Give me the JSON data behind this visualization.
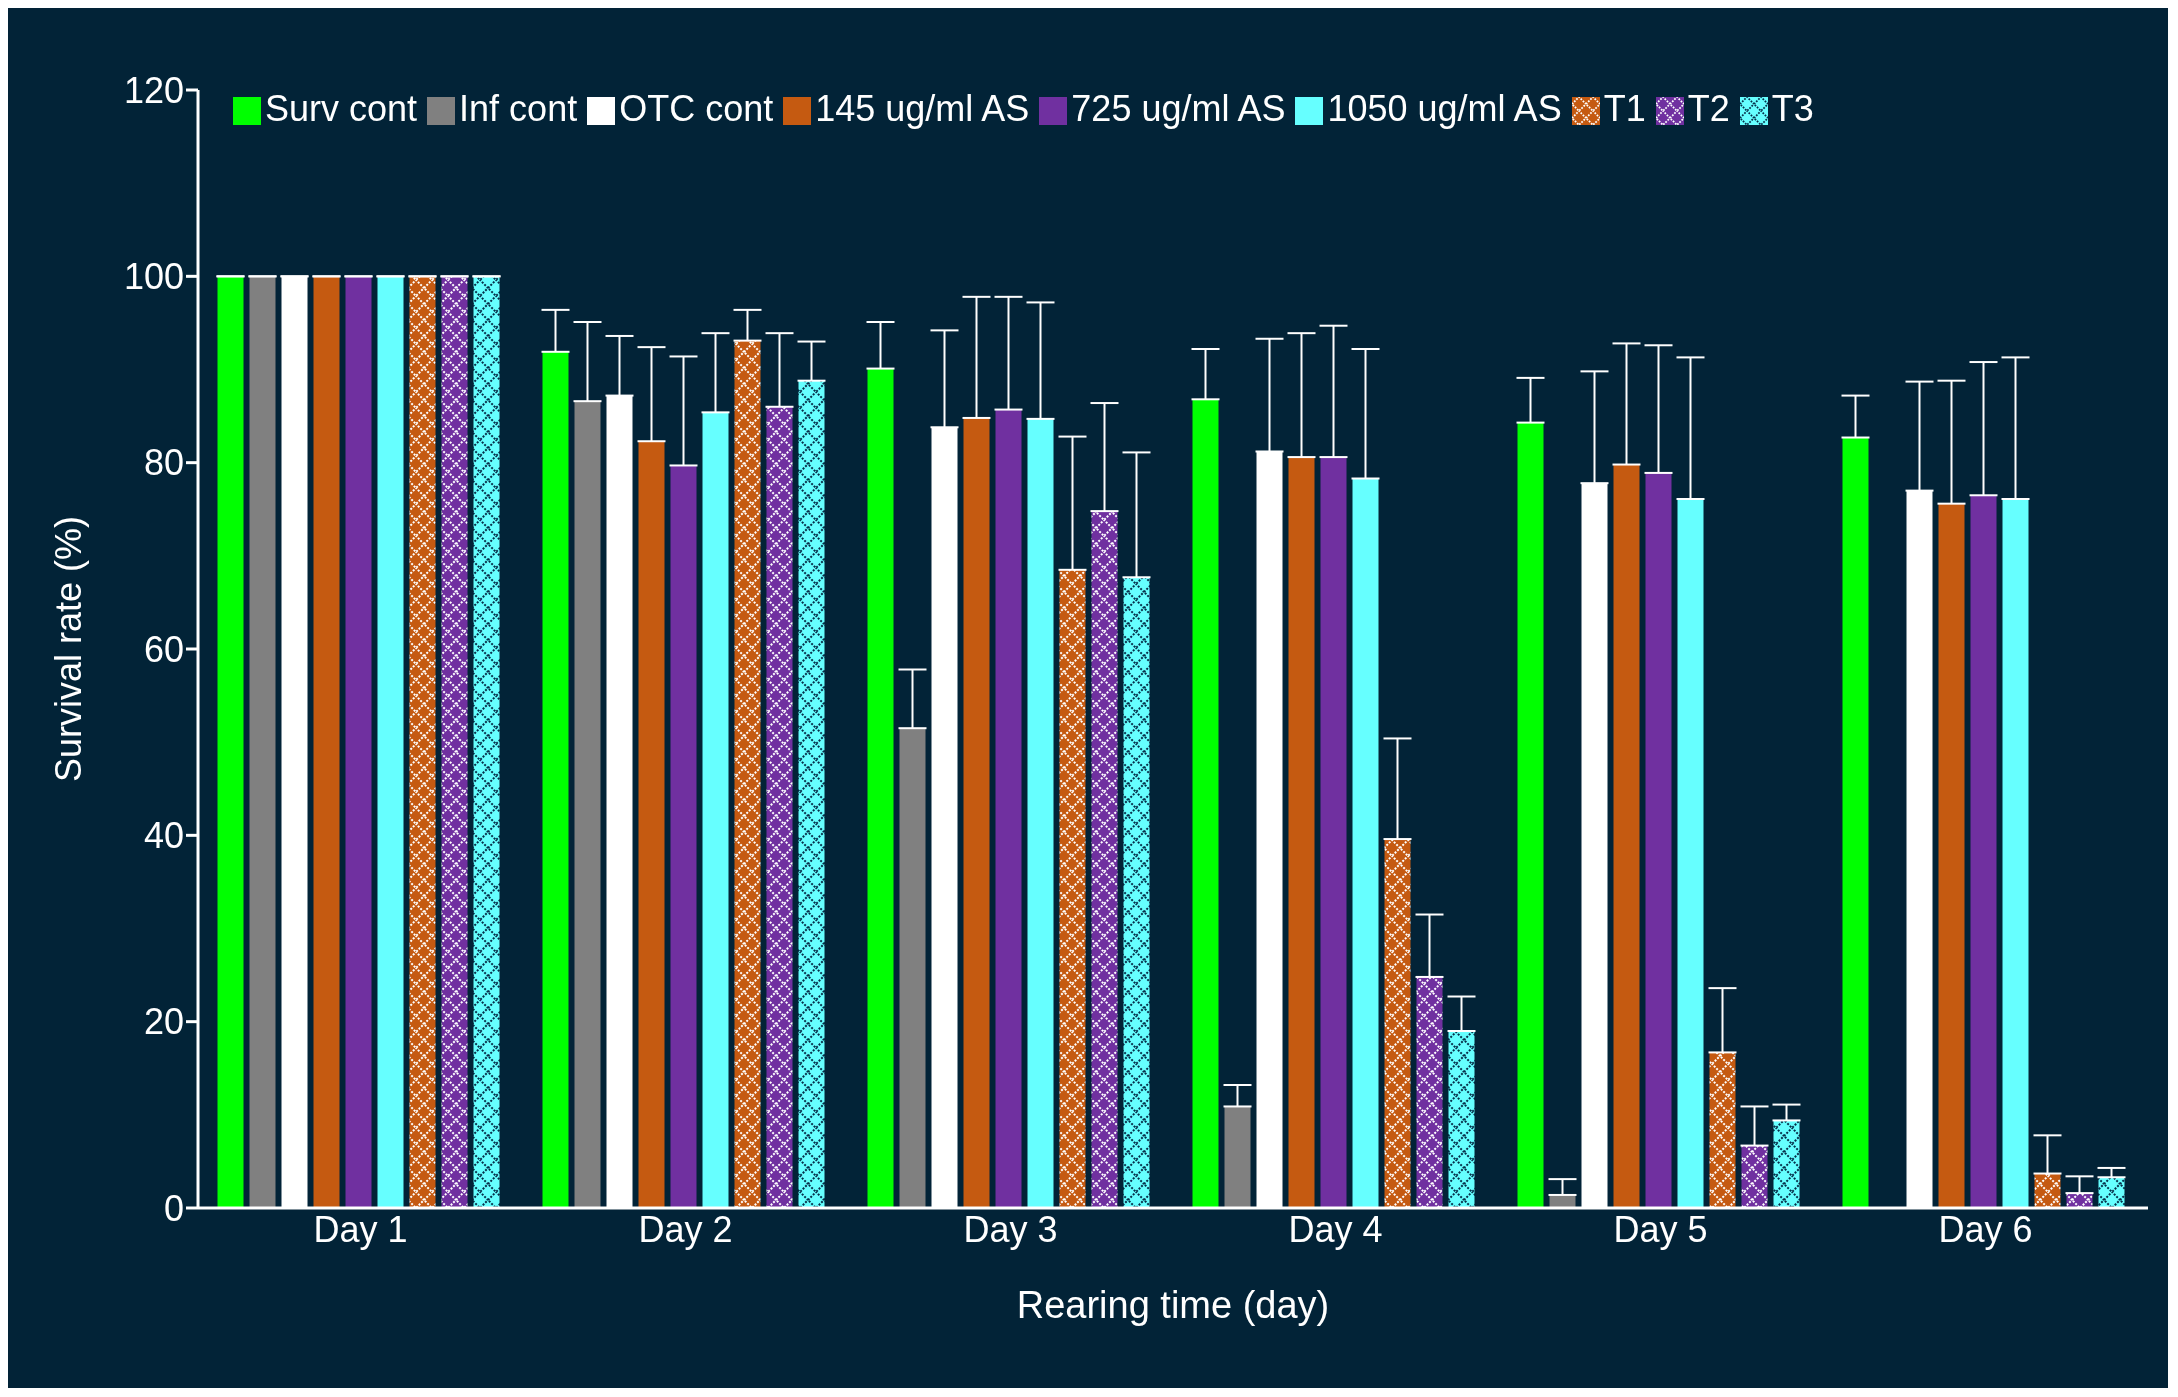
{
  "chart_data": {
    "type": "bar",
    "xlabel": "Rearing time (day)",
    "ylabel": "Survival rate (%)",
    "categories": [
      "Day 1",
      "Day 2",
      "Day 3",
      "Day 4",
      "Day 5",
      "Day 6"
    ],
    "series": [
      {
        "name": "Surv cont",
        "color": "#00ff00",
        "values": [
          100,
          91.9,
          90.1,
          86.8,
          84.3,
          82.7
        ],
        "errors": [
          0,
          4.5,
          5.0,
          5.4,
          4.8,
          4.5
        ]
      },
      {
        "name": "Inf cont",
        "color": "#808080",
        "values": [
          100,
          86.6,
          51.5,
          10.9,
          1.4,
          null
        ],
        "errors": [
          0,
          8.5,
          6.3,
          2.3,
          1.7,
          null
        ]
      },
      {
        "name": "OTC cont",
        "color": "#ffffff",
        "values": [
          100,
          87.2,
          83.8,
          81.2,
          77.8,
          77.0
        ],
        "errors": [
          0,
          6.4,
          10.4,
          12.1,
          12.0,
          11.7
        ]
      },
      {
        "name": "145 ug/ml AS",
        "color": "#c55a11",
        "values": [
          100,
          82.3,
          84.8,
          80.6,
          79.8,
          75.6
        ],
        "errors": [
          0,
          10.1,
          13.0,
          13.3,
          13.0,
          13.2
        ]
      },
      {
        "name": "725 ug/ml AS",
        "color": "#7030a0",
        "values": [
          100,
          79.7,
          85.7,
          80.6,
          78.9,
          76.5
        ],
        "errors": [
          0,
          11.7,
          12.1,
          14.1,
          13.7,
          14.3
        ]
      },
      {
        "name": "1050 ug/ml AS",
        "color": "#66ffff",
        "values": [
          100,
          85.4,
          84.7,
          78.3,
          76.1,
          76.1
        ],
        "errors": [
          0,
          8.5,
          12.5,
          13.9,
          15.2,
          15.2
        ]
      },
      {
        "name": "T1",
        "color": "#c55a11",
        "values": [
          100,
          93.1,
          68.5,
          39.6,
          16.7,
          3.7
        ],
        "errors": [
          0,
          3.3,
          14.3,
          10.8,
          6.9,
          4.1
        ]
      },
      {
        "name": "T2",
        "color": "#7030a0",
        "values": [
          100,
          86.0,
          74.8,
          24.8,
          6.7,
          1.6
        ],
        "errors": [
          0,
          7.9,
          11.6,
          6.7,
          4.2,
          1.8
        ]
      },
      {
        "name": "T3",
        "color": "#66ffff",
        "values": [
          100,
          88.8,
          67.7,
          19.0,
          9.4,
          3.3
        ],
        "errors": [
          0,
          4.2,
          13.4,
          3.7,
          1.7,
          1.0
        ]
      }
    ],
    "ylim": [
      0,
      120
    ],
    "yticks": [
      0,
      20,
      40,
      60,
      80,
      100,
      120
    ],
    "grid": false,
    "legend": "top"
  }
}
